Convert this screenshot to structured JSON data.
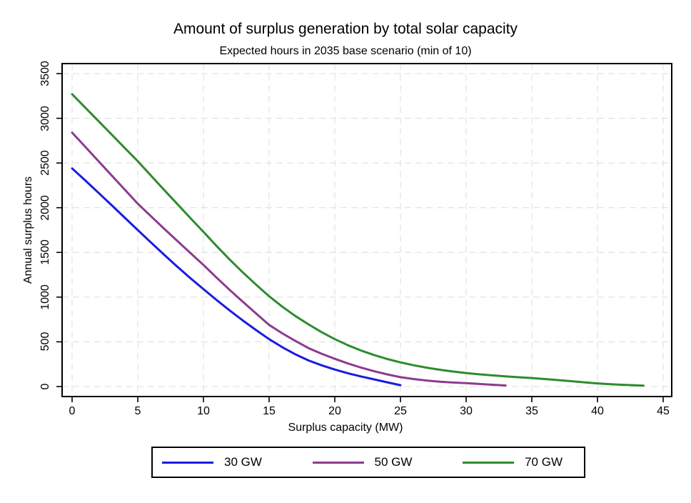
{
  "chart_data": {
    "type": "line",
    "title": "Amount of surplus generation by total solar capacity",
    "subtitle": "Expected hours in 2035 base scenario (min of 10)",
    "xlabel": "Surplus capacity (MW)",
    "ylabel": "Annual surplus hours",
    "xlim": [
      -0.8,
      45.7
    ],
    "ylim": [
      -110,
      3610
    ],
    "x_ticks": [
      0,
      5,
      10,
      15,
      20,
      25,
      30,
      35,
      40,
      45
    ],
    "y_ticks": [
      0,
      500,
      1000,
      1500,
      2000,
      2500,
      3000,
      3500
    ],
    "grid": "both-dashed",
    "grid_color": "#dcdcdc",
    "frame_color": "#000000",
    "legend_position": "bottom-center",
    "series": [
      {
        "name": "30 GW",
        "color": "#1b1be0",
        "points": [
          [
            0,
            2440
          ],
          [
            1,
            2305
          ],
          [
            2,
            2168
          ],
          [
            3,
            2030
          ],
          [
            4,
            1890
          ],
          [
            5,
            1750
          ],
          [
            6,
            1612
          ],
          [
            7,
            1475
          ],
          [
            8,
            1342
          ],
          [
            9,
            1213
          ],
          [
            10,
            1090
          ],
          [
            11,
            968
          ],
          [
            12,
            850
          ],
          [
            13,
            738
          ],
          [
            14,
            632
          ],
          [
            15,
            530
          ],
          [
            16,
            440
          ],
          [
            17,
            360
          ],
          [
            18,
            292
          ],
          [
            19,
            237
          ],
          [
            20,
            190
          ],
          [
            21,
            149
          ],
          [
            22,
            113
          ],
          [
            23,
            80
          ],
          [
            24,
            47
          ],
          [
            25,
            15
          ]
        ]
      },
      {
        "name": "50 GW",
        "color": "#8e3a8e",
        "points": [
          [
            0,
            2840
          ],
          [
            1,
            2682
          ],
          [
            2,
            2522
          ],
          [
            3,
            2363
          ],
          [
            4,
            2204
          ],
          [
            5,
            2045
          ],
          [
            6,
            1905
          ],
          [
            7,
            1766
          ],
          [
            8,
            1630
          ],
          [
            9,
            1494
          ],
          [
            10,
            1360
          ],
          [
            11,
            1218
          ],
          [
            12,
            1080
          ],
          [
            13,
            948
          ],
          [
            14,
            818
          ],
          [
            15,
            690
          ],
          [
            16,
            595
          ],
          [
            17,
            510
          ],
          [
            18,
            430
          ],
          [
            19,
            367
          ],
          [
            20,
            310
          ],
          [
            21,
            258
          ],
          [
            22,
            212
          ],
          [
            23,
            171
          ],
          [
            24,
            136
          ],
          [
            25,
            105
          ],
          [
            26,
            84
          ],
          [
            27,
            67
          ],
          [
            28,
            54
          ],
          [
            29,
            45
          ],
          [
            30,
            38
          ],
          [
            31,
            29
          ],
          [
            32,
            20
          ],
          [
            33,
            12
          ]
        ]
      },
      {
        "name": "70 GW",
        "color": "#2e8b2e",
        "points": [
          [
            0,
            3270
          ],
          [
            1,
            3120
          ],
          [
            2,
            2970
          ],
          [
            3,
            2820
          ],
          [
            4,
            2670
          ],
          [
            5,
            2520
          ],
          [
            6,
            2360
          ],
          [
            7,
            2200
          ],
          [
            8,
            2043
          ],
          [
            9,
            1885
          ],
          [
            10,
            1730
          ],
          [
            11,
            1572
          ],
          [
            12,
            1420
          ],
          [
            13,
            1276
          ],
          [
            14,
            1140
          ],
          [
            15,
            1010
          ],
          [
            16,
            893
          ],
          [
            17,
            789
          ],
          [
            18,
            695
          ],
          [
            19,
            608
          ],
          [
            20,
            530
          ],
          [
            21,
            462
          ],
          [
            22,
            403
          ],
          [
            23,
            352
          ],
          [
            24,
            308
          ],
          [
            25,
            270
          ],
          [
            26,
            238
          ],
          [
            27,
            211
          ],
          [
            28,
            188
          ],
          [
            29,
            168
          ],
          [
            30,
            151
          ],
          [
            31,
            137
          ],
          [
            32,
            125
          ],
          [
            33,
            114
          ],
          [
            34,
            104
          ],
          [
            35,
            95
          ],
          [
            36,
            84
          ],
          [
            37,
            72
          ],
          [
            38,
            60
          ],
          [
            39,
            47
          ],
          [
            40,
            35
          ],
          [
            41,
            26
          ],
          [
            42,
            19
          ],
          [
            43,
            13
          ],
          [
            43.5,
            10
          ]
        ]
      }
    ]
  }
}
